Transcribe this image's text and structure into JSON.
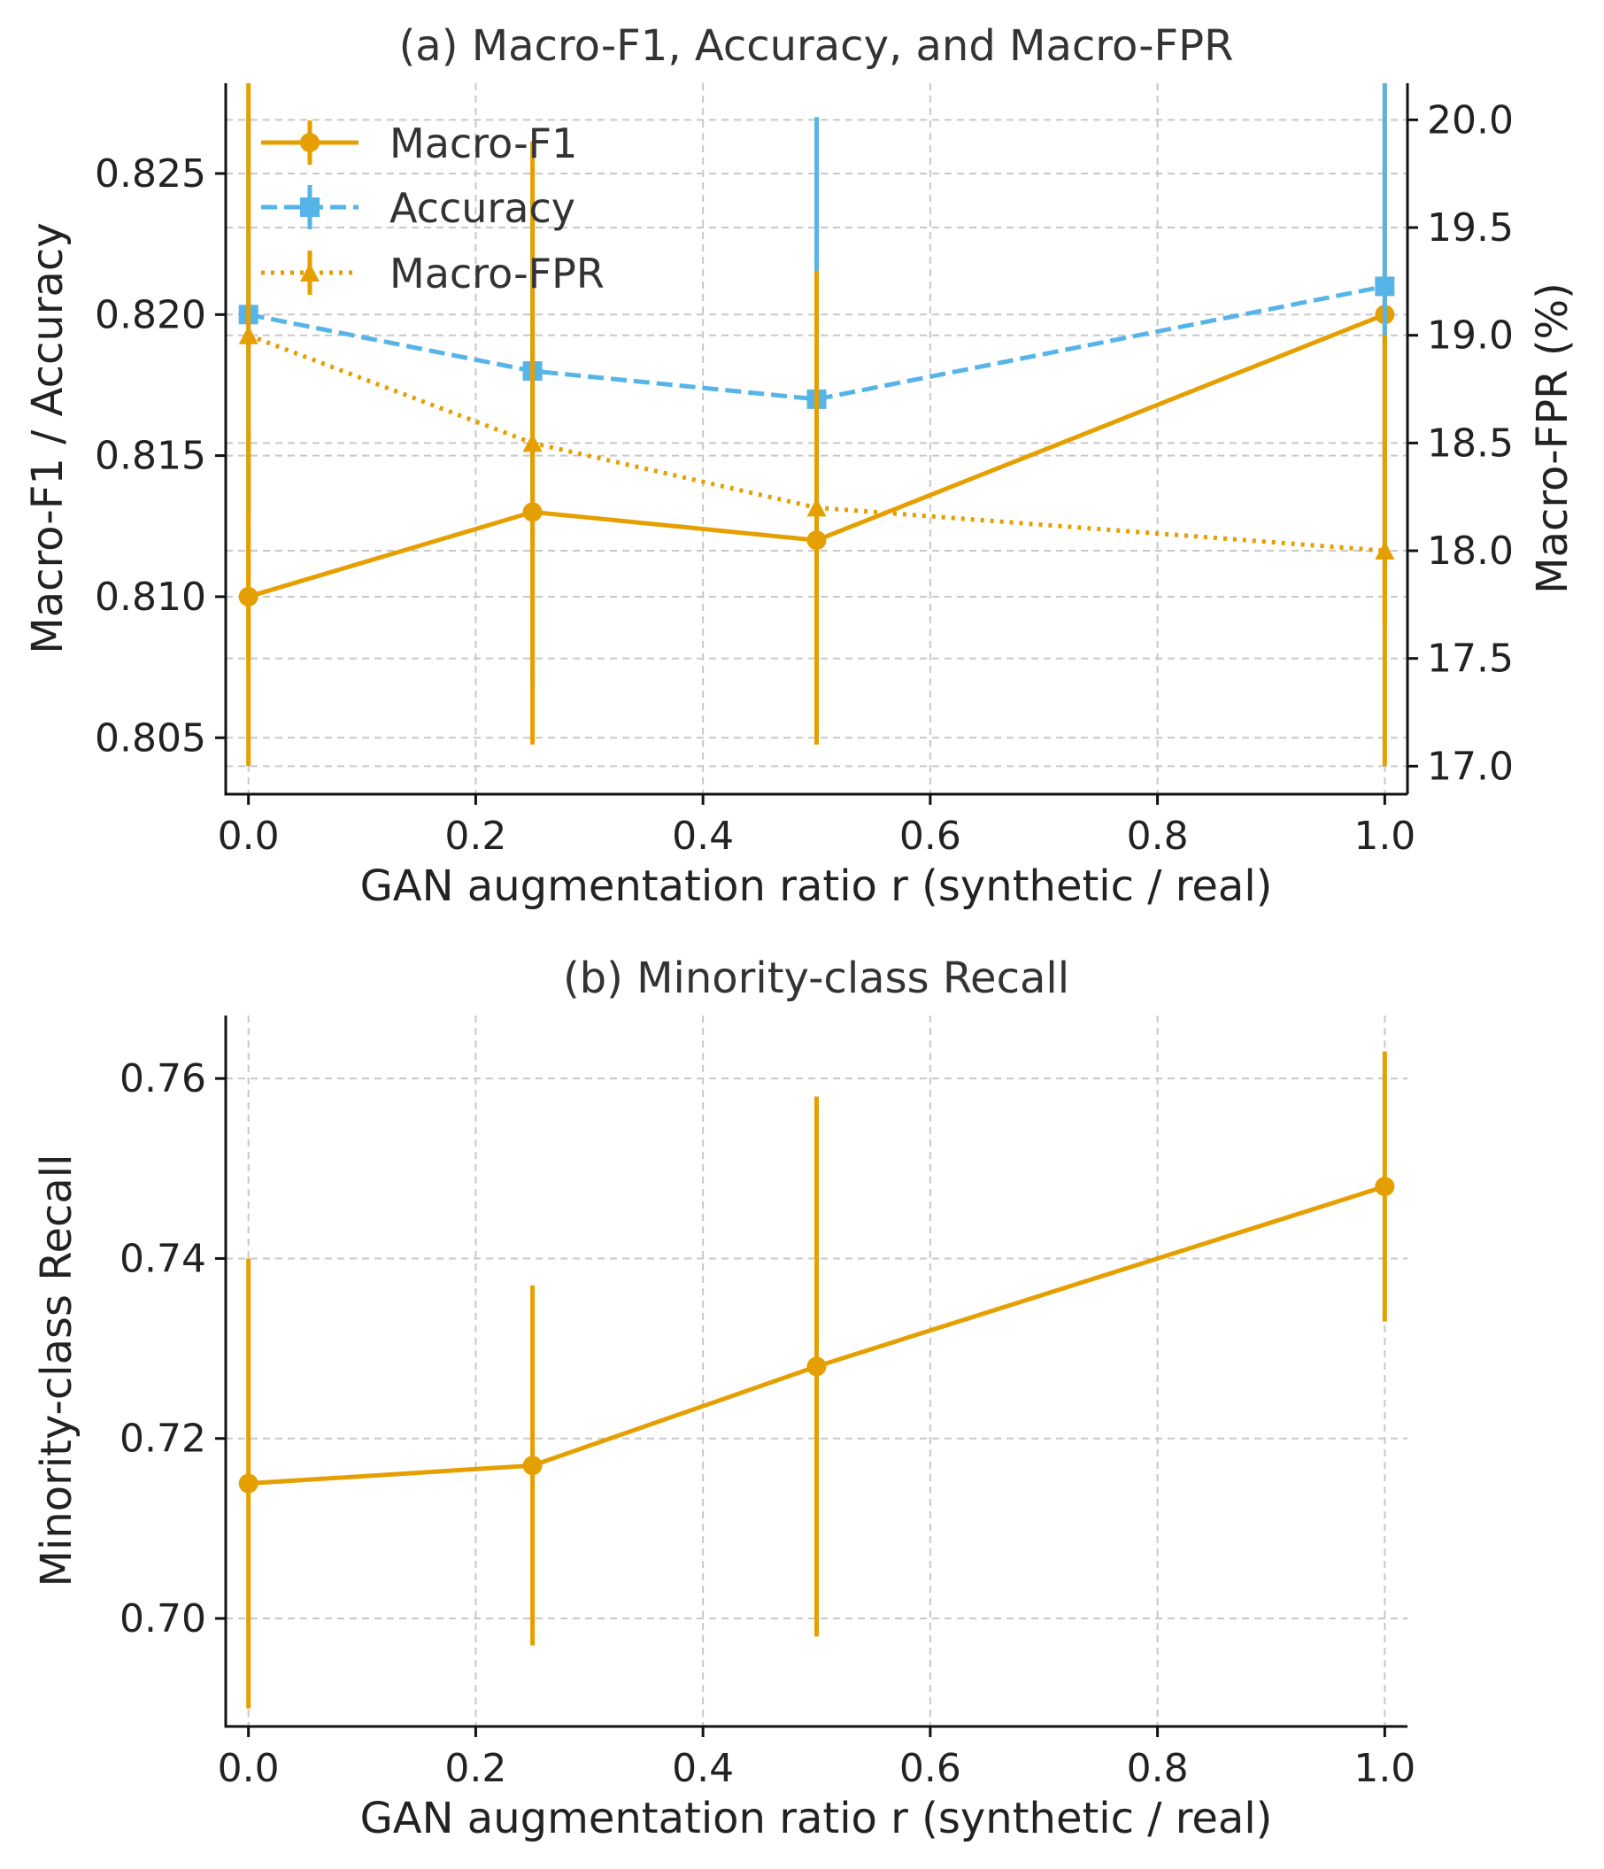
{
  "chart_data": [
    {
      "type": "line",
      "title": "(a) Macro-F1, Accuracy, and Macro-FPR",
      "xlabel": "GAN augmentation ratio r (synthetic / real)",
      "ylabel": "Macro-F1 / Accuracy",
      "ylabel_right": "Macro-FPR (%)",
      "xlim": [
        -0.02,
        1.02
      ],
      "ylim": [
        0.803,
        0.8282
      ],
      "ylim_right": [
        16.87,
        20.17
      ],
      "xticks": [
        "0.0",
        "0.2",
        "0.4",
        "0.6",
        "0.8",
        "1.0"
      ],
      "yticks": [
        "0.805",
        "0.810",
        "0.815",
        "0.820",
        "0.825"
      ],
      "yticks_right": [
        "17.0",
        "17.5",
        "18.0",
        "18.5",
        "19.0",
        "19.5",
        "20.0"
      ],
      "x": [
        0.0,
        0.25,
        0.5,
        1.0
      ],
      "legend_position": "top-left",
      "series": [
        {
          "name": "Macro-F1",
          "axis": "left",
          "style": "solid",
          "marker": "circle",
          "color": "#E69F00",
          "values": [
            0.81,
            0.813,
            0.812,
            0.82
          ],
          "err": [
            0.006,
            0.006,
            0.007,
            0.011
          ]
        },
        {
          "name": "Accuracy",
          "axis": "left",
          "style": "dashed",
          "marker": "square",
          "color": "#56B4E9",
          "values": [
            0.82,
            0.818,
            0.817,
            0.821
          ],
          "err": [
            0.007,
            0.006,
            0.01,
            0.01
          ]
        },
        {
          "name": "Macro-FPR",
          "axis": "right",
          "style": "dotted",
          "marker": "triangle",
          "color": "#E69F00",
          "values": [
            19.0,
            18.5,
            18.2,
            18.0
          ],
          "err": [
            1.5,
            1.4,
            1.1,
            1.0
          ]
        }
      ]
    },
    {
      "type": "line",
      "title": "(b) Minority-class Recall",
      "xlabel": "GAN augmentation ratio r (synthetic / real)",
      "ylabel": "Minority-class Recall",
      "xlim": [
        -0.02,
        1.02
      ],
      "ylim": [
        0.688,
        0.767
      ],
      "xticks": [
        "0.0",
        "0.2",
        "0.4",
        "0.6",
        "0.8",
        "1.0"
      ],
      "yticks": [
        "0.70",
        "0.72",
        "0.74",
        "0.76"
      ],
      "x": [
        0.0,
        0.25,
        0.5,
        1.0
      ],
      "series": [
        {
          "name": "Minority-class Recall",
          "style": "solid",
          "marker": "circle",
          "color": "#E69F00",
          "values": [
            0.715,
            0.717,
            0.728,
            0.748
          ],
          "err": [
            0.025,
            0.02,
            0.03,
            0.015
          ]
        }
      ]
    }
  ]
}
